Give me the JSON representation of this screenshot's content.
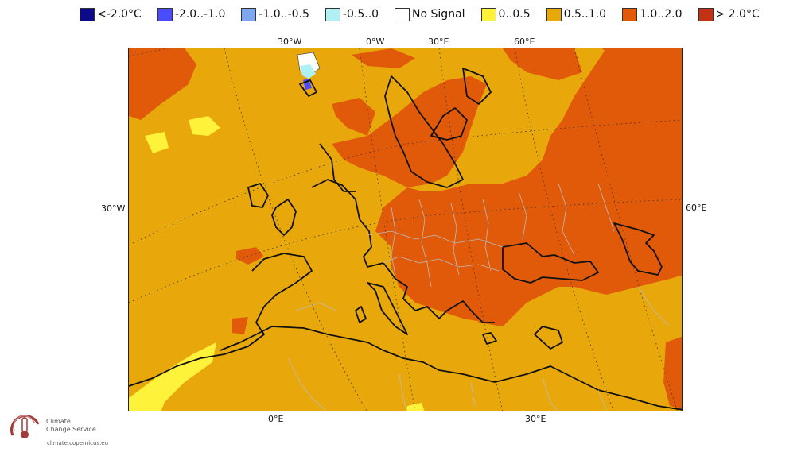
{
  "legend": [
    {
      "label": "<-2.0°C",
      "color": "#0a0a8a"
    },
    {
      "label": "-2.0..-1.0",
      "color": "#4b4bff"
    },
    {
      "label": "-1.0..-0.5",
      "color": "#7fa6f0"
    },
    {
      "label": "-0.5..0",
      "color": "#aff0f5"
    },
    {
      "label": "No Signal",
      "color": "#ffffff"
    },
    {
      "label": "0..0.5",
      "color": "#fff23a"
    },
    {
      "label": "0.5..1.0",
      "color": "#e8a80c"
    },
    {
      "label": "1.0..2.0",
      "color": "#e05a0a"
    },
    {
      "label": "> 2.0°C",
      "color": "#c43214"
    }
  ],
  "graticule": {
    "top": [
      "30°W",
      "0°W",
      "30°E",
      "60°E"
    ],
    "left": "30°W",
    "right": "60°E",
    "bottom": [
      "0°E",
      "30°E"
    ]
  },
  "logo": {
    "line1": "Climate",
    "line2": "Change Service",
    "url": "climate.copernicus.eu"
  }
}
